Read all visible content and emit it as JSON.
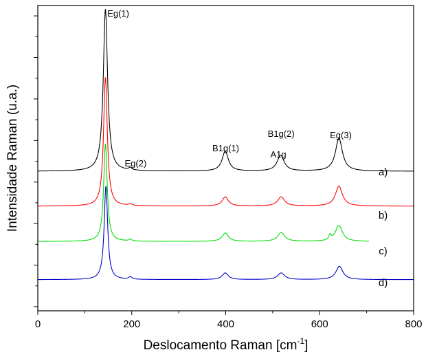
{
  "chart_data": {
    "type": "line",
    "title": "",
    "xlabel": "Deslocamento Raman [cm",
    "xlabel_sup": "-1",
    "xlabel_end": "]",
    "ylabel": "Intensidade Raman (u.a.)",
    "xlim": [
      0,
      800
    ],
    "xticks": [
      0,
      200,
      400,
      600,
      800
    ],
    "xtick_labels": [
      "0",
      "200",
      "400",
      "600",
      "800"
    ],
    "y_tick_labels_shown": false,
    "grid": false,
    "legend": "none",
    "y_units": "arbitrary units",
    "peaks": [
      {
        "name": "Eg(1)",
        "x": 144
      },
      {
        "name": "Eg(2)",
        "x": 197
      },
      {
        "name": "B1g(1)",
        "x": 399
      },
      {
        "name": "B1g(2)",
        "x": 517
      },
      {
        "name": "A1g",
        "x": 517
      },
      {
        "name": "Eg(3)",
        "x": 640
      }
    ],
    "series": [
      {
        "name": "a)",
        "color": "#000000",
        "x_start": 0,
        "x_end": 800,
        "baseline": 1.26,
        "peaks": [
          {
            "x": 144,
            "h": 3.9,
            "w": 5.5
          },
          {
            "x": 197,
            "h": 0.06,
            "w": 4
          },
          {
            "x": 399,
            "h": 0.48,
            "w": 8
          },
          {
            "x": 517,
            "h": 0.38,
            "w": 9
          },
          {
            "x": 641,
            "h": 0.79,
            "w": 9
          }
        ]
      },
      {
        "name": "b)",
        "color": "#ff0000",
        "x_start": 0,
        "x_end": 800,
        "baseline": 0.42,
        "peaks": [
          {
            "x": 144,
            "h": 3.1,
            "w": 4.8
          },
          {
            "x": 197,
            "h": 0.04,
            "w": 4
          },
          {
            "x": 399,
            "h": 0.22,
            "w": 8
          },
          {
            "x": 518,
            "h": 0.22,
            "w": 9
          },
          {
            "x": 641,
            "h": 0.48,
            "w": 9
          }
        ]
      },
      {
        "name": "c)",
        "color": "#00dd00",
        "x_start": 0,
        "x_end": 705,
        "baseline": -0.43,
        "peaks": [
          {
            "x": 144,
            "h": 2.35,
            "w": 4.5
          },
          {
            "x": 197,
            "h": 0.04,
            "w": 4
          },
          {
            "x": 399,
            "h": 0.2,
            "w": 8
          },
          {
            "x": 518,
            "h": 0.21,
            "w": 9
          },
          {
            "x": 622,
            "h": 0.12,
            "w": 3
          },
          {
            "x": 641,
            "h": 0.38,
            "w": 9
          }
        ]
      },
      {
        "name": "d)",
        "color": "#0000cc",
        "x_start": 0,
        "x_end": 800,
        "baseline": -1.35,
        "peaks": [
          {
            "x": 145,
            "h": 2.25,
            "w": 4.5
          },
          {
            "x": 197,
            "h": 0.06,
            "w": 4
          },
          {
            "x": 399,
            "h": 0.16,
            "w": 8
          },
          {
            "x": 518,
            "h": 0.16,
            "w": 9
          },
          {
            "x": 642,
            "h": 0.32,
            "w": 9
          }
        ]
      }
    ]
  }
}
